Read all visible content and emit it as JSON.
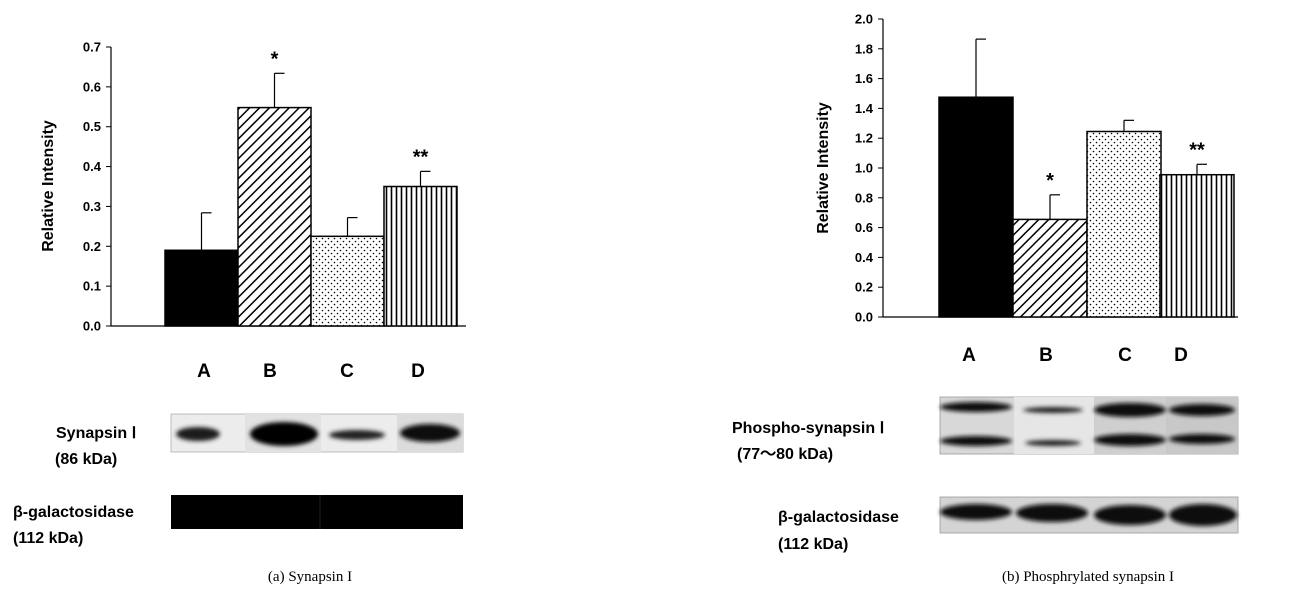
{
  "chart_data": [
    {
      "type": "bar",
      "categories": [
        "A",
        "B",
        "C",
        "D"
      ],
      "values": [
        0.19,
        0.548,
        0.225,
        0.35
      ],
      "errors": [
        0.094,
        0.086,
        0.047,
        0.038
      ],
      "significance": [
        "",
        "*",
        "",
        "**"
      ],
      "ylabel": "Relative Intensity",
      "ylim": [
        0,
        0.7
      ],
      "yticks": [
        "0.0",
        "0.1",
        "0.2",
        "0.3",
        "0.4",
        "0.5",
        "0.6",
        "0.7"
      ],
      "fills": [
        "solid-black",
        "diagonal-hatch",
        "dots",
        "vertical-lines"
      ],
      "blots": [
        {
          "name": "Synapsin Ⅰ",
          "mass": "(86 kDa)"
        },
        {
          "name": "β-galactosidase",
          "mass": "(112 kDa)"
        }
      ],
      "caption": "(a) Synapsin I"
    },
    {
      "type": "bar",
      "categories": [
        "A",
        "B",
        "C",
        "D"
      ],
      "values": [
        1.475,
        0.655,
        1.245,
        0.955
      ],
      "errors": [
        0.39,
        0.165,
        0.075,
        0.07
      ],
      "significance": [
        "",
        "*",
        "",
        "**"
      ],
      "ylabel": "Relative Intensity",
      "ylim": [
        0,
        2.0
      ],
      "yticks": [
        "0.0",
        "0.2",
        "0.4",
        "0.6",
        "0.8",
        "1.0",
        "1.2",
        "1.4",
        "1.6",
        "1.8",
        "2.0"
      ],
      "fills": [
        "solid-black",
        "diagonal-hatch",
        "dots",
        "vertical-lines"
      ],
      "blots": [
        {
          "name": "Phospho-synapsin Ⅰ",
          "mass": "(77～80 kDa)"
        },
        {
          "name": "β-galactosidase",
          "mass": "(112 kDa)"
        }
      ],
      "caption": "(b) Phosphrylated synapsin I"
    }
  ]
}
